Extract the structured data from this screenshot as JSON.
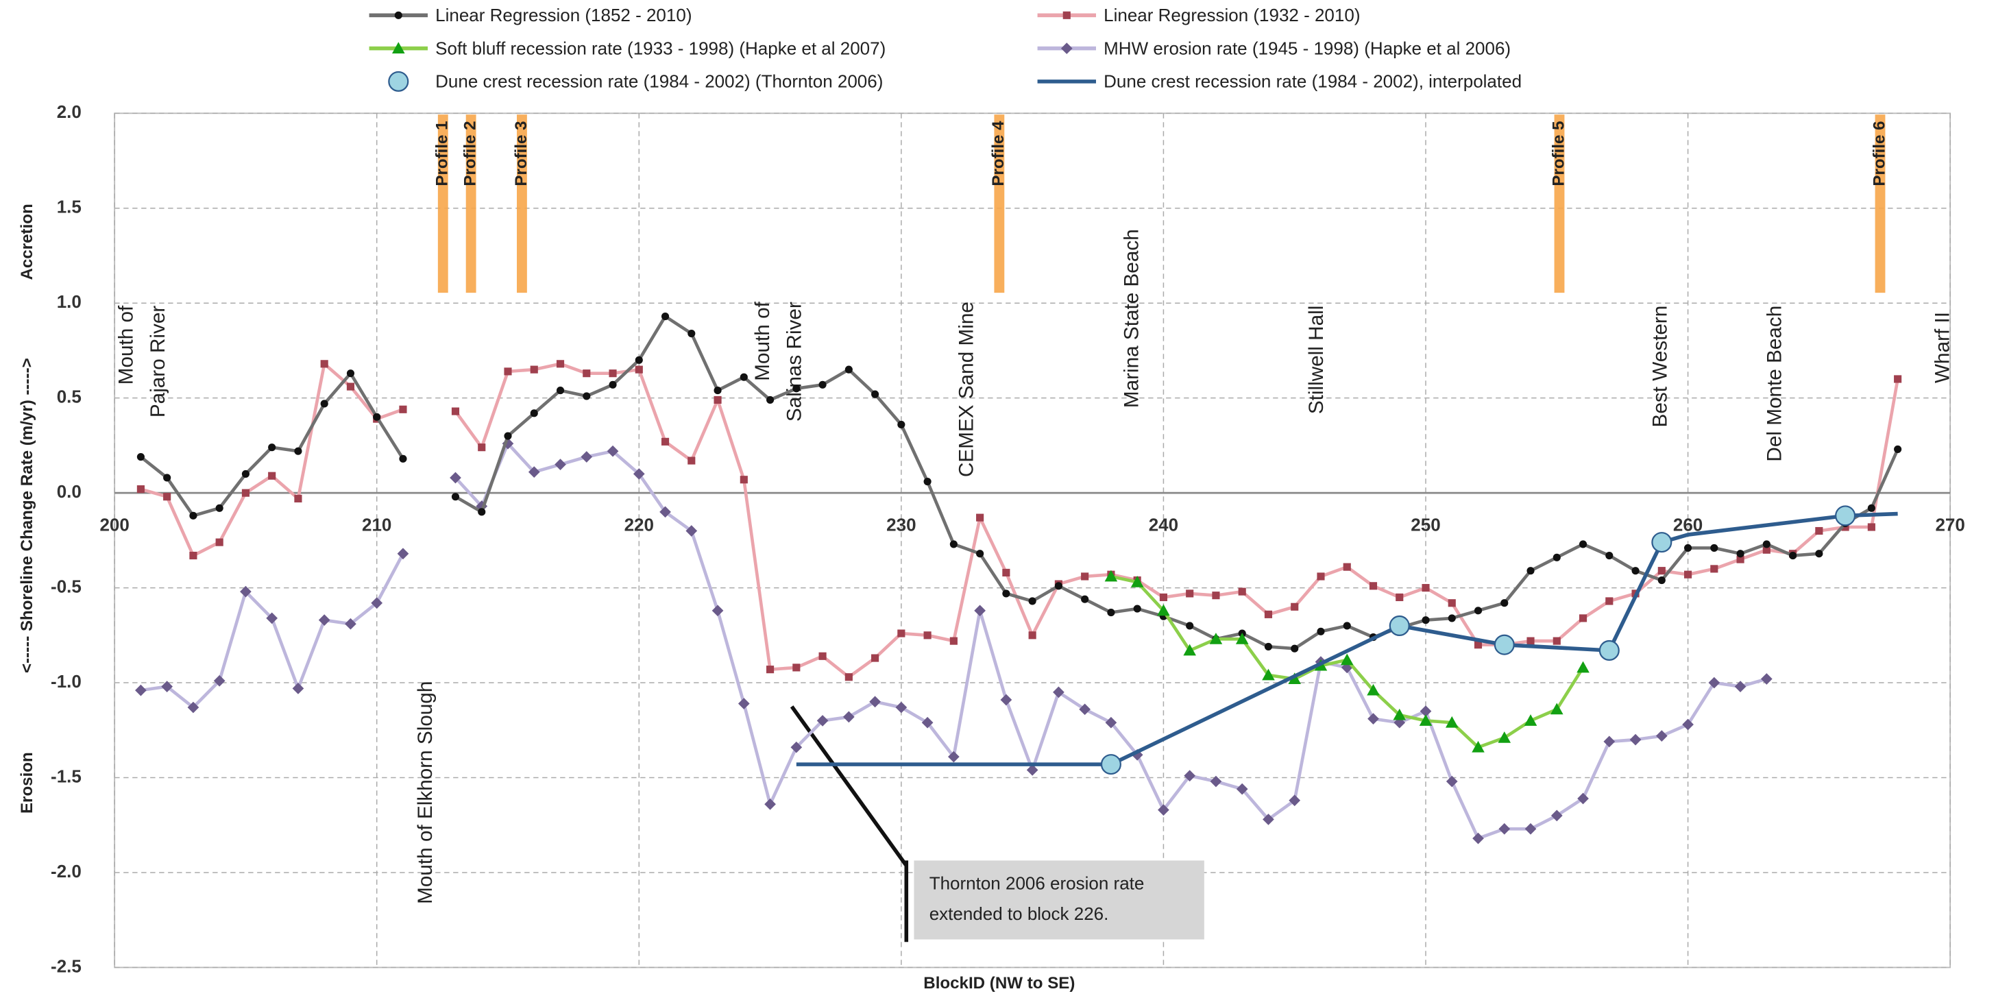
{
  "chart_data": {
    "type": "line",
    "x_label": "BlockID  (NW to SE)",
    "y_label": "<-----  Shoreline Change Rate (m/yr)  ----->",
    "y_label_low": "Erosion",
    "y_label_high": "Accretion",
    "xlim": [
      200,
      270
    ],
    "xticks": [
      200,
      210,
      220,
      230,
      240,
      250,
      260,
      270
    ],
    "ylim": [
      -2.5,
      2.0
    ],
    "yticks": [
      {
        "value": 2,
        "label": "2.0"
      },
      1.5,
      {
        "value": 1,
        "label": "1.0"
      },
      0.5,
      {
        "value": 0,
        "label": "0.0"
      },
      -0.5,
      {
        "value": -1,
        "label": "-1.0"
      },
      -1.5,
      {
        "value": -2,
        "label": "-2.0"
      },
      -2.5
    ],
    "grid": true,
    "series": [
      {
        "name": "Linear Regression (1852 - 2010)",
        "color": "#707070",
        "marker_color": "#111111",
        "marker": "circle",
        "line": true,
        "x": [
          201,
          202,
          203,
          204,
          205,
          206,
          207,
          208,
          209,
          210,
          211,
          212,
          213,
          214,
          215,
          216,
          217,
          218,
          219,
          220,
          221,
          222,
          223,
          224,
          225,
          226,
          227,
          228,
          229,
          230,
          231,
          232,
          233,
          234,
          235,
          236,
          237,
          238,
          239,
          240,
          241,
          242,
          243,
          244,
          245,
          246,
          247,
          248,
          249,
          250,
          251,
          252,
          253,
          254,
          255,
          256,
          257,
          258,
          259,
          260,
          261,
          262,
          263,
          264,
          265,
          266,
          267,
          268
        ],
        "values": [
          0.19,
          0.08,
          -0.12,
          -0.08,
          0.1,
          0.24,
          0.22,
          0.47,
          0.63,
          0.4,
          0.18,
          null,
          -0.02,
          -0.1,
          0.3,
          0.42,
          0.54,
          0.51,
          0.57,
          0.7,
          0.93,
          0.84,
          0.54,
          0.61,
          0.49,
          0.55,
          0.57,
          0.65,
          0.52,
          0.36,
          0.06,
          -0.27,
          -0.32,
          -0.53,
          -0.57,
          -0.49,
          -0.56,
          -0.63,
          -0.61,
          -0.65,
          -0.7,
          -0.77,
          -0.74,
          -0.81,
          -0.82,
          -0.73,
          -0.7,
          -0.76,
          -0.71,
          -0.67,
          -0.66,
          -0.62,
          -0.58,
          -0.41,
          -0.34,
          -0.27,
          -0.33,
          -0.41,
          -0.46,
          -0.29,
          -0.29,
          -0.32,
          -0.27,
          -0.33,
          -0.32,
          -0.16,
          -0.08,
          0.23
        ]
      },
      {
        "name": "Linear Regression (1932 - 2010)",
        "color": "#eba4ac",
        "marker_color": "#a0404e",
        "marker": "square",
        "line": true,
        "x": [
          201,
          202,
          203,
          204,
          205,
          206,
          207,
          208,
          209,
          210,
          211,
          212,
          213,
          214,
          215,
          216,
          217,
          218,
          219,
          220,
          221,
          222,
          223,
          224,
          225,
          226,
          227,
          228,
          229,
          230,
          231,
          232,
          233,
          234,
          235,
          236,
          237,
          238,
          239,
          240,
          241,
          242,
          243,
          244,
          245,
          246,
          247,
          248,
          249,
          250,
          251,
          252,
          253,
          254,
          255,
          256,
          257,
          258,
          259,
          260,
          261,
          262,
          263,
          264,
          265,
          266,
          267,
          268
        ],
        "values": [
          0.02,
          -0.02,
          -0.33,
          -0.26,
          0.0,
          0.09,
          -0.03,
          0.68,
          0.56,
          0.39,
          0.44,
          null,
          0.43,
          0.24,
          0.64,
          0.65,
          0.68,
          0.63,
          0.63,
          0.65,
          0.27,
          0.17,
          0.49,
          0.07,
          -0.93,
          -0.92,
          -0.86,
          -0.97,
          -0.87,
          -0.74,
          -0.75,
          -0.78,
          -0.13,
          -0.42,
          -0.75,
          -0.48,
          -0.44,
          -0.43,
          -0.46,
          -0.55,
          -0.53,
          -0.54,
          -0.52,
          -0.64,
          -0.6,
          -0.44,
          -0.39,
          -0.49,
          -0.55,
          -0.5,
          -0.58,
          -0.8,
          -0.8,
          -0.78,
          -0.78,
          -0.66,
          -0.57,
          -0.53,
          -0.41,
          -0.43,
          -0.4,
          -0.35,
          -0.3,
          -0.32,
          -0.2,
          -0.18,
          -0.18,
          0.6
        ]
      },
      {
        "name": "Soft bluff recession rate (1933 - 1998) (Hapke et al 2007)",
        "color": "#8ccf4a",
        "marker_color": "#12a012",
        "marker": "triangle",
        "line": true,
        "x": [
          238,
          239,
          240,
          241,
          242,
          243,
          244,
          245,
          246,
          247,
          248,
          249,
          250,
          251,
          252,
          253,
          254,
          255,
          256
        ],
        "values": [
          -0.44,
          -0.47,
          -0.62,
          -0.83,
          -0.77,
          -0.77,
          -0.96,
          -0.98,
          -0.91,
          -0.88,
          -1.04,
          -1.17,
          -1.2,
          -1.21,
          -1.34,
          -1.29,
          -1.2,
          -1.14,
          -0.92
        ]
      },
      {
        "name": "MHW erosion rate (1945 - 1998) (Hapke et al 2006)",
        "color": "#bdb6dc",
        "marker_color": "#6a5a8a",
        "marker": "diamond",
        "line": true,
        "x": [
          201,
          202,
          203,
          204,
          205,
          206,
          207,
          208,
          209,
          210,
          211,
          212,
          213,
          214,
          215,
          216,
          217,
          218,
          219,
          220,
          221,
          222,
          223,
          224,
          225,
          226,
          227,
          228,
          229,
          230,
          231,
          232,
          233,
          234,
          235,
          236,
          237,
          238,
          239,
          240,
          241,
          242,
          243,
          244,
          245,
          246,
          247,
          248,
          249,
          250,
          251,
          252,
          253,
          254,
          255,
          256,
          257,
          258,
          259,
          260,
          261,
          262,
          263
        ],
        "values": [
          -1.04,
          -1.02,
          -1.13,
          -0.99,
          -0.52,
          -0.66,
          -1.03,
          -0.67,
          -0.69,
          -0.58,
          -0.32,
          null,
          0.08,
          -0.07,
          0.26,
          0.11,
          0.15,
          0.19,
          0.22,
          0.1,
          -0.1,
          -0.2,
          -0.62,
          -1.11,
          -1.64,
          -1.34,
          -1.2,
          -1.18,
          -1.1,
          -1.13,
          -1.21,
          -1.39,
          -0.62,
          -1.09,
          -1.46,
          -1.05,
          -1.14,
          -1.21,
          -1.38,
          -1.67,
          -1.49,
          -1.52,
          -1.56,
          -1.72,
          -1.62,
          -0.89,
          -0.92,
          -1.19,
          -1.21,
          -1.15,
          -1.52,
          -1.82,
          -1.77,
          -1.77,
          -1.7,
          -1.61,
          -1.31,
          -1.3,
          -1.28,
          -1.22,
          -1.0,
          -1.02,
          -0.98
        ]
      },
      {
        "name": "Dune crest recession rate (1984 - 2002) (Thornton 2006)",
        "color": "#2e5c8e",
        "marker_color": "#9ed4e2",
        "marker": "bigcircle",
        "line": false,
        "x": [
          238,
          249,
          253,
          257,
          259,
          266
        ],
        "values": [
          -1.43,
          -0.7,
          -0.8,
          -0.83,
          -0.26,
          -0.12
        ]
      },
      {
        "name": "Dune crest recession rate (1984 - 2002), interpolated",
        "color": "#2e5c8e",
        "marker": "none",
        "line": true,
        "x": [
          226,
          238,
          249,
          253,
          257,
          259,
          260,
          266,
          268
        ],
        "values": [
          -1.43,
          -1.43,
          -0.7,
          -0.8,
          -0.83,
          -0.26,
          -0.22,
          -0.12,
          -0.11
        ]
      }
    ],
    "locations": [
      [
        "Mouth of",
        "Pajaro River"
      ],
      [
        "Mouth of Elkhorn Slough"
      ],
      [
        "Mouth of",
        "Salinas River"
      ],
      [
        "CEMEX Sand Mine"
      ],
      [
        "Marina State Beach"
      ],
      [
        "Stillwell Hall"
      ],
      [
        "Best Western"
      ],
      [
        "Del Monte Beach"
      ],
      [
        "Wharf II"
      ]
    ],
    "profiles": [
      "Profile 1",
      "Profile 2",
      "Profile 3",
      "Profile 4",
      "Profile 5",
      "Profile 6"
    ],
    "annotation": [
      "Thornton 2006 erosion rate",
      "extended to block 226."
    ]
  }
}
